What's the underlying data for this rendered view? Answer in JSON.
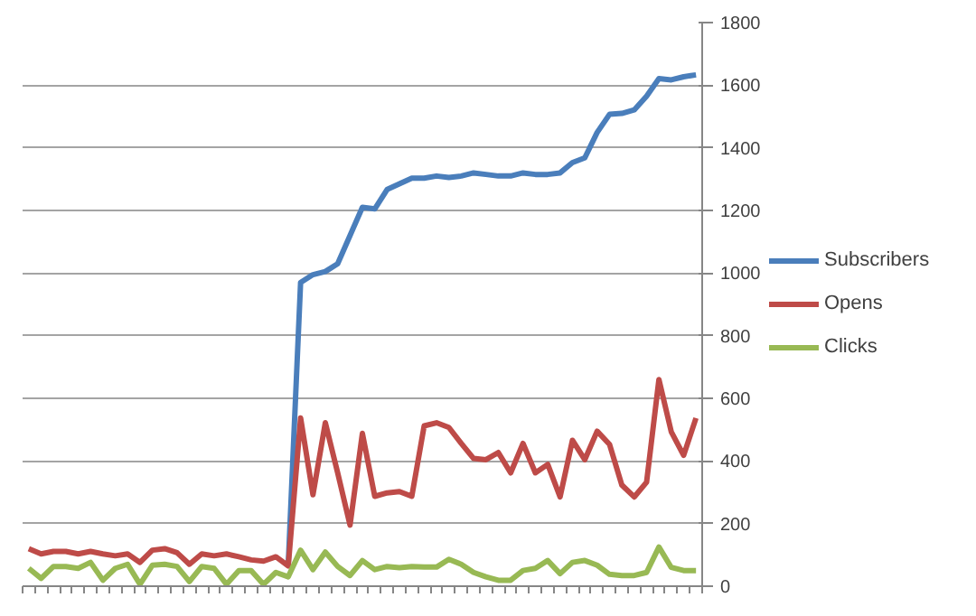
{
  "chart_data": {
    "type": "line",
    "categories": [
      null,
      null,
      null,
      null,
      null,
      null,
      null,
      null,
      null,
      null,
      null,
      null,
      null,
      null,
      null,
      null,
      null,
      null,
      null,
      null,
      null,
      null,
      null,
      null,
      null,
      null,
      null,
      null,
      null,
      null,
      null,
      null,
      null,
      null,
      null,
      null,
      null,
      null,
      null,
      null,
      null,
      null,
      null,
      null,
      null,
      null,
      null,
      null,
      null,
      null,
      null,
      null,
      null,
      null,
      null
    ],
    "series": [
      {
        "name": "Subscribers",
        "color": "#4a7ebb",
        "values": [
          null,
          null,
          null,
          null,
          null,
          null,
          null,
          null,
          null,
          null,
          null,
          null,
          null,
          null,
          null,
          null,
          null,
          null,
          null,
          null,
          null,
          70,
          970,
          995,
          1005,
          1030,
          1120,
          1210,
          1205,
          1267,
          1285,
          1303,
          1303,
          1310,
          1305,
          1310,
          1320,
          1315,
          1310,
          1310,
          1320,
          1315,
          1315,
          1320,
          1353,
          1368,
          1449,
          1507,
          1510,
          1521,
          1565,
          1621,
          1617,
          1627,
          1633
        ]
      },
      {
        "name": "Opens",
        "color": "#be4b48",
        "values": [
          120,
          103,
          111,
          111,
          103,
          111,
          103,
          97,
          103,
          76,
          115,
          120,
          107,
          70,
          103,
          97,
          103,
          94,
          84,
          80,
          94,
          65,
          537,
          292,
          522,
          362,
          195,
          488,
          287,
          298,
          302,
          287,
          512,
          522,
          507,
          456,
          408,
          404,
          427,
          362,
          456,
          362,
          389,
          285,
          466,
          404,
          495,
          453,
          323,
          285,
          332,
          660,
          493,
          418,
          537
        ]
      },
      {
        "name": "Clicks",
        "color": "#98b954",
        "values": [
          57,
          25,
          63,
          63,
          57,
          76,
          19,
          57,
          70,
          6,
          67,
          70,
          63,
          15,
          63,
          57,
          6,
          50,
          50,
          6,
          44,
          30,
          115,
          53,
          109,
          63,
          34,
          82,
          53,
          63,
          59,
          63,
          61,
          61,
          86,
          70,
          44,
          30,
          19,
          19,
          50,
          57,
          82,
          40,
          76,
          82,
          67,
          38,
          34,
          34,
          44,
          125,
          60,
          50,
          50
        ]
      }
    ],
    "ylim": [
      0,
      1800
    ],
    "yticks": [
      0,
      200,
      400,
      600,
      800,
      1000,
      1200,
      1400,
      1600,
      1800
    ],
    "grid": "y",
    "legend": "right",
    "line_style": "solid",
    "marker": "none"
  }
}
